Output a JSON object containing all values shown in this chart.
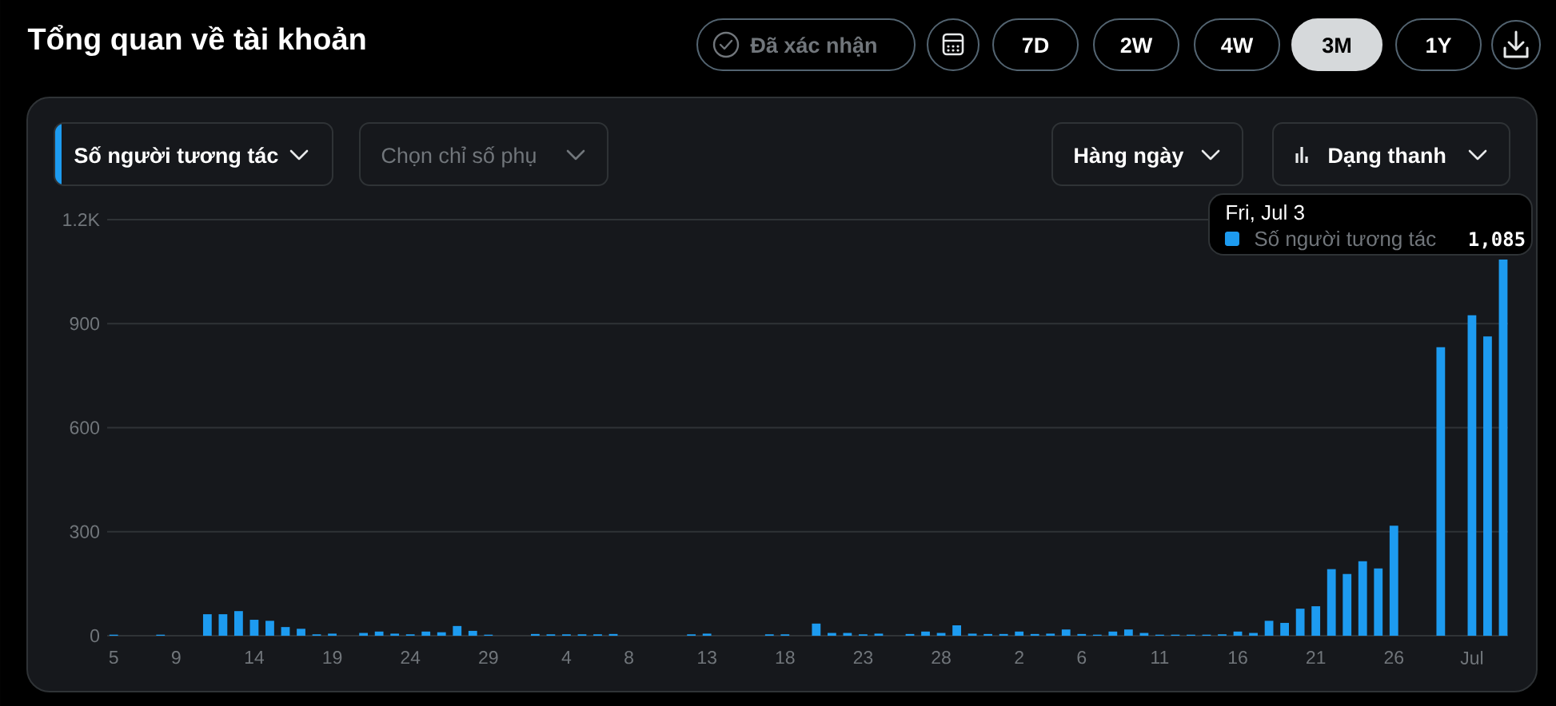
{
  "chart_data": {
    "type": "bar",
    "title": "Tổng quan về tài khoản",
    "annotations": [
      "Đã xác nhận",
      "7D",
      "2W",
      "4W",
      "3M",
      "1Y",
      "Chọn chỉ số phụ",
      "Hàng ngày",
      "Dạng thanh"
    ],
    "categories": [
      "5",
      null,
      null,
      null,
      "9",
      null,
      null,
      null,
      null,
      "14",
      null,
      null,
      null,
      null,
      "19",
      null,
      null,
      null,
      null,
      "24",
      null,
      null,
      null,
      null,
      "29",
      null,
      null,
      null,
      null,
      "4",
      null,
      null,
      null,
      "8",
      null,
      null,
      null,
      null,
      "13",
      null,
      null,
      null,
      null,
      "18",
      null,
      null,
      null,
      null,
      "23",
      null,
      null,
      null,
      null,
      "28",
      null,
      null,
      null,
      null,
      "2",
      null,
      null,
      null,
      "6",
      null,
      null,
      null,
      null,
      "11",
      null,
      null,
      null,
      null,
      "16",
      null,
      null,
      null,
      null,
      "21",
      null,
      null,
      null,
      null,
      "26",
      null,
      null,
      null,
      null,
      "Jul",
      null,
      null
    ],
    "series": [
      {
        "name": "Số người tương tác",
        "color": "#1d9bf0",
        "values": [
          3,
          0,
          0,
          3,
          0,
          0,
          62,
          62,
          71,
          46,
          43,
          25,
          20,
          4,
          6,
          0,
          8,
          12,
          6,
          4,
          12,
          10,
          28,
          14,
          3,
          0,
          0,
          5,
          4,
          4,
          4,
          4,
          5,
          0,
          0,
          0,
          0,
          4,
          6,
          0,
          0,
          0,
          4,
          4,
          0,
          35,
          8,
          8,
          4,
          6,
          0,
          5,
          12,
          8,
          30,
          6,
          5,
          5,
          12,
          5,
          6,
          18,
          5,
          3,
          12,
          18,
          8,
          3,
          3,
          3,
          3,
          4,
          12,
          8,
          43,
          37,
          78,
          85,
          192,
          178,
          215,
          194,
          317,
          null,
          null,
          832,
          null,
          924,
          863,
          1085
        ],
        "value_labels": [
          null,
          null,
          null,
          null,
          null,
          null,
          null,
          null,
          null,
          null,
          null,
          null,
          null,
          null,
          null,
          null,
          null,
          null,
          null,
          null,
          null,
          null,
          null,
          null,
          null,
          null,
          null,
          null,
          null,
          null,
          null,
          null,
          null,
          null,
          null,
          null,
          null,
          null,
          null,
          null,
          null,
          null,
          null,
          null,
          null,
          null,
          null,
          null,
          null,
          null,
          null,
          null,
          null,
          null,
          null,
          null,
          null,
          null,
          null,
          null,
          null,
          null,
          null,
          null,
          null,
          null,
          null,
          null,
          null,
          null,
          null,
          null,
          null,
          null,
          null,
          null,
          null,
          null,
          null,
          null,
          null,
          null,
          null,
          null,
          null,
          null,
          null,
          null,
          null,
          "1,085"
        ]
      }
    ],
    "ylim": [
      0,
      1200
    ],
    "yticks": [
      0,
      300,
      600,
      900,
      {
        "value": 1200,
        "label": "1.2K"
      }
    ],
    "grid": "y",
    "legend": "top right",
    "legend_title": "Fri, Jul 3"
  }
}
